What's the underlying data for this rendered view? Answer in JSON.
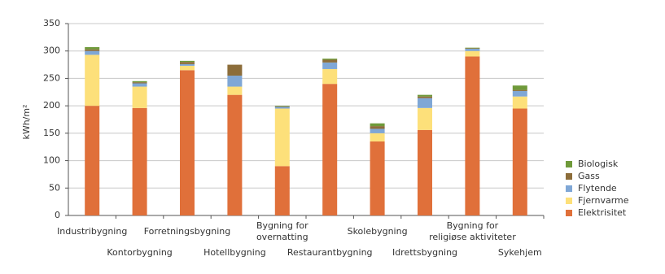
{
  "chart_data": {
    "type": "stacked-bar",
    "y_label": "kWh/m²",
    "categories": [
      "Industribygning",
      "Kontorbygning",
      "Forretningsbygning",
      "Hotellbygning",
      "Bygning for\novernatting",
      "Restaurantbygning",
      "Skolebygning",
      "Idrettsbygning",
      "Bygning for\nreligiøse aktiviteter",
      "Sykehjem"
    ],
    "series": [
      {
        "name": "Elektrisitet",
        "color": "#e0703a",
        "values": [
          200,
          196,
          265,
          220,
          90,
          240,
          135,
          156,
          290,
          195
        ]
      },
      {
        "name": "Fjernvarme",
        "color": "#fde07a",
        "values": [
          93,
          39,
          8,
          15,
          105,
          27,
          15,
          40,
          10,
          22
        ]
      },
      {
        "name": "Flytende",
        "color": "#7fa7d6",
        "values": [
          7,
          6,
          3,
          20,
          3,
          12,
          8,
          18,
          4,
          10
        ]
      },
      {
        "name": "Gass",
        "color": "#8c6d3a",
        "values": [
          3,
          2,
          4,
          20,
          1,
          5,
          5,
          3,
          1,
          2
        ]
      },
      {
        "name": "Biologisk",
        "color": "#6f9a3a",
        "values": [
          4,
          2,
          2,
          0,
          1,
          2,
          5,
          3,
          1,
          8
        ]
      }
    ],
    "ylim": [
      0,
      350
    ],
    "yticks": [
      0,
      50,
      100,
      150,
      200,
      250,
      300,
      350
    ],
    "grid": true
  }
}
